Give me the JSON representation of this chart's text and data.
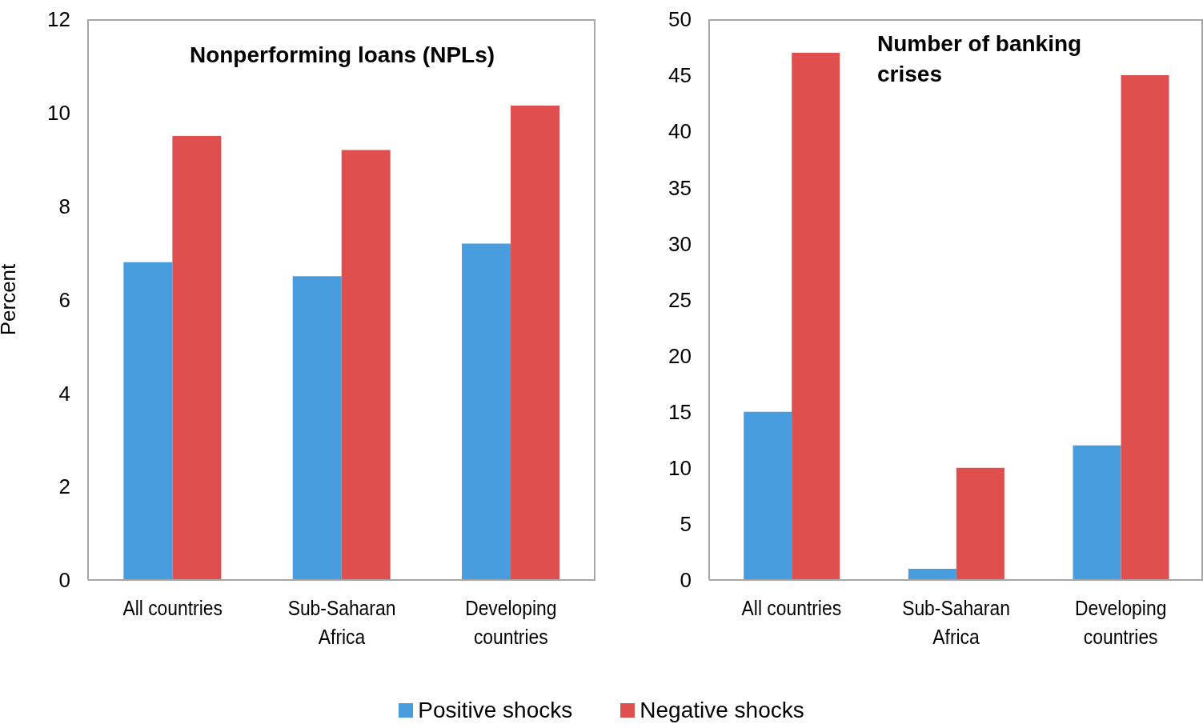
{
  "chart_data": [
    {
      "type": "bar",
      "title": "Nonperforming loans (NPLs)",
      "ylabel": "Percent",
      "categories": [
        "All countries",
        "Sub-Saharan Africa",
        "Developing countries"
      ],
      "series": [
        {
          "name": "Positive shocks",
          "color": "#479ddd",
          "values": [
            6.8,
            6.5,
            7.2
          ]
        },
        {
          "name": "Negative shocks",
          "color": "#de4f4e",
          "values": [
            9.5,
            9.2,
            10.15
          ]
        }
      ],
      "ylim": [
        0,
        12
      ],
      "yticks": [
        0,
        2,
        4,
        6,
        8,
        10,
        12
      ],
      "grid": false,
      "legend": "bottom"
    },
    {
      "type": "bar",
      "title": "Number of banking crises",
      "categories": [
        "All countries",
        "Sub-Saharan Africa",
        "Developing countries"
      ],
      "series": [
        {
          "color": "#479ddd",
          "values": [
            15,
            1,
            12
          ]
        },
        {
          "color": "#de4f4e",
          "values": [
            47,
            10,
            45
          ]
        }
      ],
      "ylim": [
        0,
        50
      ],
      "yticks": [
        0,
        5,
        10,
        15,
        20,
        25,
        30,
        35,
        40,
        45,
        50
      ],
      "grid": false
    }
  ]
}
